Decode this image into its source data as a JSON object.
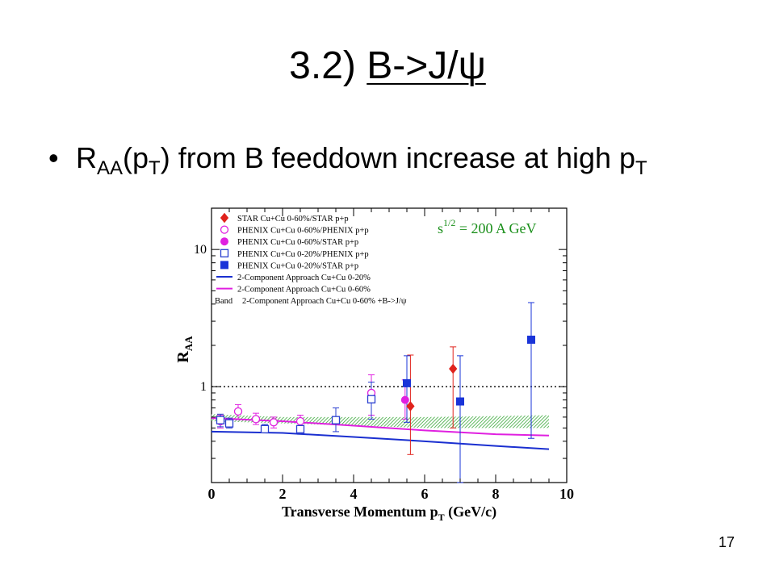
{
  "slide": {
    "title_prefix": "3.2) ",
    "title_main": "B->J/ψ",
    "bullet_char": "•",
    "bullet": {
      "r": "R",
      "aa": "AA",
      "open": "(p",
      "t1": "T",
      "mid": ") from B feeddown increase at high p",
      "t2": "T"
    },
    "page_number": "17"
  },
  "chart_data": {
    "type": "scatter",
    "xlabel_main": "Transverse Momentum p",
    "xlabel_sub": "T",
    "xlabel_unit": " (GeV/c)",
    "ylabel_main": "R",
    "ylabel_sub": "AA",
    "annotation_main": "s",
    "annotation_sup": "1/2",
    "annotation_rest": " = 200 A GeV",
    "annotation_color": "#1a8f1a",
    "xlim": [
      0,
      10
    ],
    "ylim": [
      0.2,
      20
    ],
    "y_scale": "log",
    "x_ticks": [
      0,
      2,
      4,
      6,
      8,
      10
    ],
    "x_tick_labels": [
      "0",
      "2",
      "4",
      "6",
      "8",
      "10"
    ],
    "y_ticks": [
      1,
      10
    ],
    "y_tick_labels": [
      "1",
      "10"
    ],
    "reference_line": 1,
    "legend_position": "top-left",
    "legend": [
      {
        "label": "STAR     Cu+Cu 0-60%/STAR p+p",
        "marker": "diamond-filled",
        "color": "#e0231c"
      },
      {
        "label": "PHENIX Cu+Cu 0-60%/PHENIX p+p",
        "marker": "circle-open",
        "color": "#e020e0"
      },
      {
        "label": "PHENIX Cu+Cu 0-60%/STAR p+p",
        "marker": "circle-filled",
        "color": "#e020e0"
      },
      {
        "label": "PHENIX Cu+Cu 0-20%/PHENIX p+p",
        "marker": "square-open",
        "color": "#2a3fd0"
      },
      {
        "label": "PHENIX Cu+Cu 0-20%/STAR p+p",
        "marker": "square-filled",
        "color": "#1a34d8"
      },
      {
        "label": "2-Component Approach Cu+Cu 0-20%",
        "marker": "line",
        "color": "#1a2fd0"
      },
      {
        "label": "2-Component Approach Cu+Cu 0-60%",
        "marker": "line",
        "color": "#e020e0"
      },
      {
        "label": "2-Component Approach Cu+Cu 0-60% +B->J/ψ",
        "marker": "band",
        "prefix": "Band",
        "color": "#3aa83a"
      }
    ],
    "series": [
      {
        "name": "STAR     Cu+Cu 0-60%/STAR p+p",
        "marker": "diamond-filled",
        "color": "#e0231c",
        "err_color": "#e0231c",
        "points": [
          {
            "x": 5.6,
            "y": 0.72,
            "lo": 0.32,
            "hi": 1.7
          },
          {
            "x": 6.8,
            "y": 1.35,
            "lo": 0.5,
            "hi": 1.95
          }
        ]
      },
      {
        "name": "PHENIX Cu+Cu 0-60%/PHENIX p+p",
        "marker": "circle-open",
        "color": "#e020e0",
        "err_color": "#e020e0",
        "points": [
          {
            "x": 0.25,
            "y": 0.56,
            "lo": 0.5,
            "hi": 0.62
          },
          {
            "x": 0.75,
            "y": 0.66,
            "lo": 0.58,
            "hi": 0.74
          },
          {
            "x": 1.25,
            "y": 0.58,
            "lo": 0.53,
            "hi": 0.64
          },
          {
            "x": 1.75,
            "y": 0.55,
            "lo": 0.5,
            "hi": 0.6
          },
          {
            "x": 2.5,
            "y": 0.56,
            "lo": 0.51,
            "hi": 0.62
          },
          {
            "x": 4.5,
            "y": 0.9,
            "lo": 0.62,
            "hi": 1.22
          }
        ]
      },
      {
        "name": "PHENIX Cu+Cu 0-60%/STAR p+p",
        "marker": "circle-filled",
        "color": "#e020e0",
        "err_color": "#e020e0",
        "points": [
          {
            "x": 5.45,
            "y": 0.8,
            "lo": 0.58,
            "hi": 1.12
          }
        ]
      },
      {
        "name": "PHENIX Cu+Cu 0-20%/PHENIX p+p",
        "marker": "square-open",
        "color": "#2a3fd0",
        "err_color": "#2a3fd0",
        "points": [
          {
            "x": 0.25,
            "y": 0.57,
            "lo": 0.51,
            "hi": 0.63
          },
          {
            "x": 0.5,
            "y": 0.54,
            "lo": 0.5,
            "hi": 0.59
          },
          {
            "x": 1.5,
            "y": 0.49,
            "lo": 0.46,
            "hi": 0.53
          },
          {
            "x": 2.5,
            "y": 0.49,
            "lo": 0.45,
            "hi": 0.54
          },
          {
            "x": 3.5,
            "y": 0.57,
            "lo": 0.47,
            "hi": 0.7
          },
          {
            "x": 4.5,
            "y": 0.81,
            "lo": 0.58,
            "hi": 1.08
          }
        ]
      },
      {
        "name": "PHENIX Cu+Cu 0-20%/STAR p+p",
        "marker": "square-filled",
        "color": "#1a34d8",
        "err_color": "#1a34d8",
        "points": [
          {
            "x": 5.5,
            "y": 1.06,
            "lo": 0.55,
            "hi": 1.68
          },
          {
            "x": 7.0,
            "y": 0.78,
            "lo": 0.2,
            "hi": 1.68
          },
          {
            "x": 9.0,
            "y": 2.2,
            "lo": 0.42,
            "hi": 4.1
          }
        ]
      },
      {
        "name": "2-Component Approach Cu+Cu 0-20%",
        "type": "line",
        "color": "#1a2fd0",
        "points": [
          {
            "x": 0,
            "y": 0.47
          },
          {
            "x": 2,
            "y": 0.46
          },
          {
            "x": 4,
            "y": 0.43
          },
          {
            "x": 6,
            "y": 0.4
          },
          {
            "x": 8,
            "y": 0.37
          },
          {
            "x": 9.5,
            "y": 0.35
          }
        ]
      },
      {
        "name": "2-Component Approach Cu+Cu 0-60%",
        "type": "line",
        "color": "#e020e0",
        "points": [
          {
            "x": 0,
            "y": 0.59
          },
          {
            "x": 2,
            "y": 0.56
          },
          {
            "x": 4,
            "y": 0.52
          },
          {
            "x": 6,
            "y": 0.48
          },
          {
            "x": 8,
            "y": 0.45
          },
          {
            "x": 9.5,
            "y": 0.44
          }
        ]
      },
      {
        "name": "2-Component Approach Cu+Cu 0-60% +B->J/ψ",
        "type": "band",
        "color": "#3aa83a",
        "points": [
          {
            "x": 0,
            "lo": 0.56,
            "hi": 0.63
          },
          {
            "x": 2,
            "lo": 0.54,
            "hi": 0.6
          },
          {
            "x": 4,
            "lo": 0.52,
            "hi": 0.6
          },
          {
            "x": 6,
            "lo": 0.5,
            "hi": 0.6
          },
          {
            "x": 8,
            "lo": 0.5,
            "hi": 0.61
          },
          {
            "x": 9.5,
            "lo": 0.5,
            "hi": 0.62
          }
        ]
      }
    ]
  }
}
